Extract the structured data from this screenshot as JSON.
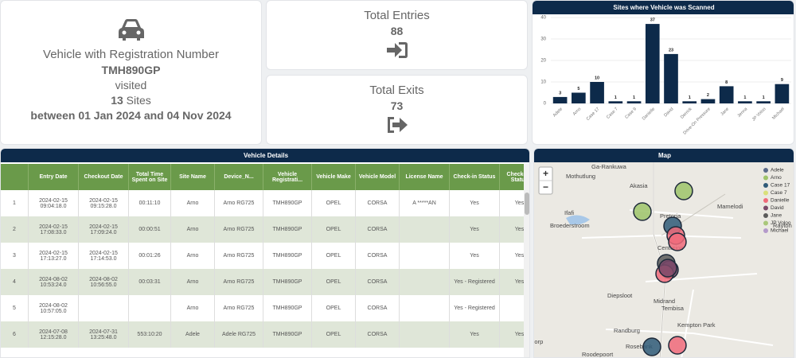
{
  "summary": {
    "heading": "Vehicle with Registration Number",
    "registration": "TMH890GP",
    "visited": "visited",
    "sites_count": 13,
    "sites_word": "Sites",
    "period": "between 01 Jan 2024 and 04 Nov 2024"
  },
  "entries": {
    "label": "Total Entries",
    "value": 88
  },
  "exits": {
    "label": "Total Exits",
    "value": 73
  },
  "chart_data": {
    "type": "bar",
    "title": "Sites where Vehicle was Scanned",
    "categories": [
      "Adele",
      "Arno",
      "Case 17",
      "Case 7",
      "Case 9",
      "Danielle",
      "David",
      "Derrick",
      "Drive-On Pressure",
      "Jane",
      "Jenna",
      "JP Voloo",
      "Michael"
    ],
    "values": [
      3,
      5,
      10,
      1,
      1,
      37,
      23,
      1,
      2,
      8,
      1,
      1,
      9
    ],
    "color": "#0d2a4a",
    "ylim": [
      0,
      40
    ],
    "yticks": [
      0,
      10,
      20,
      30,
      40
    ],
    "grid": true
  },
  "table": {
    "title": "Vehicle Details",
    "columns": [
      null,
      "Entry Date",
      "Checkout Date",
      "Total Time Spent on Site",
      "Site Name",
      "Device_N...",
      "Vehicle Registrati...",
      "Vehicle Make",
      "Vehicle Model",
      "License Name",
      "Check-in Status",
      "Checkout Status"
    ],
    "rows": [
      [
        "1",
        "2024-02-15 09:04:18.0",
        "2024-02-15 09:15:28.0",
        "00:11:10",
        "Arno",
        "Arno RG725",
        "TMH890GP",
        "OPEL",
        "CORSA",
        "A *****AN",
        "Yes",
        "Yes"
      ],
      [
        "2",
        "2024-02-15 17:08:33.0",
        "2024-02-15 17:09:24.0",
        "00:00:51",
        "Arno",
        "Arno RG725",
        "TMH890GP",
        "OPEL",
        "CORSA",
        null,
        "Yes",
        "Yes"
      ],
      [
        "3",
        "2024-02-15 17:13:27.0",
        "2024-02-15 17:14:53.0",
        "00:01:26",
        "Arno",
        "Arno RG725",
        "TMH890GP",
        "OPEL",
        "CORSA",
        null,
        "Yes",
        "Yes"
      ],
      [
        "4",
        "2024-08-02 10:53:24.0",
        "2024-08-02 10:56:55.0",
        "00:03:31",
        "Arno",
        "Arno RG725",
        "TMH890GP",
        "OPEL",
        "CORSA",
        null,
        "Yes - Registered",
        "Yes"
      ],
      [
        "5",
        "2024-08-02 10:57:05.0",
        null,
        null,
        "Arno",
        "Arno RG725",
        "TMH890GP",
        "OPEL",
        "CORSA",
        null,
        "Yes - Registered",
        null
      ],
      [
        "6",
        "2024-07-08 12:15:28.0",
        "2024-07-31 13:25:48.0",
        "553:10:20",
        "Adele",
        "Adele RG725",
        "TMH890GP",
        "OPEL",
        "CORSA",
        null,
        "Yes",
        "Yes"
      ]
    ]
  },
  "map": {
    "title": "Map",
    "zoom_in": "+",
    "zoom_out": "−",
    "places": [
      "Ga-Rankuwa",
      "Mothutlung",
      "Akasia",
      "Ifafi",
      "Broederstroom",
      "Pretoria",
      "Mamelodi",
      "Rayton",
      "Centurion",
      "Diepsloot",
      "Midrand",
      "Tembisa",
      "Randburg",
      "Kempton Park",
      "Roodepoort",
      "Rosebank",
      "Krugersdorp"
    ],
    "legend": [
      {
        "name": "Adele",
        "color": "#5b6b8a"
      },
      {
        "name": "Arno",
        "color": "#9ec46a"
      },
      {
        "name": "Case 17",
        "color": "#2f5a78"
      },
      {
        "name": "Case 7",
        "color": "#d9e07a"
      },
      {
        "name": "Danielle",
        "color": "#f06a7a"
      },
      {
        "name": "David",
        "color": "#7a4a6a"
      },
      {
        "name": "Jane",
        "color": "#5a5a5a"
      },
      {
        "name": "JP Voloo",
        "color": "#a9c77a"
      },
      {
        "name": "Michael",
        "color": "#b49acb"
      }
    ]
  }
}
